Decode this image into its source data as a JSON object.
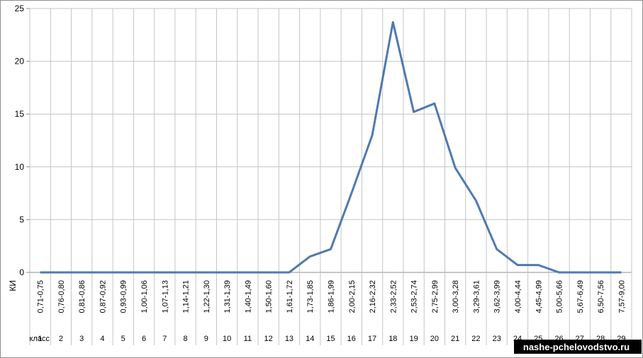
{
  "chart_data": {
    "type": "line",
    "row_label_interval": "КИ",
    "row_label_class": "класс",
    "intervals": [
      "0,71-0,75",
      "0,76-0,80",
      "0,81-0,86",
      "0,87-0,92",
      "0,93-0,99",
      "1,00-1,06",
      "1,07-1,13",
      "1,14-1,21",
      "1,22-1,30",
      "1,31-1,39",
      "1,40-1,49",
      "1,50-1,60",
      "1,61-1,72",
      "1,73-1,85",
      "1,86-1,99",
      "2,00-2,15",
      "2,16-2,32",
      "2,33-2,52",
      "2,53-2,74",
      "2,75-2,99",
      "3,00-3,28",
      "3,29-3,61",
      "3,62-3,99",
      "4,00-4,44",
      "4,45-4,99",
      "5,00-5,66",
      "5,67-6,49",
      "6,50-7,56",
      "7,57-9,00"
    ],
    "classes": [
      "1",
      "2",
      "3",
      "4",
      "5",
      "6",
      "7",
      "8",
      "9",
      "10",
      "11",
      "12",
      "13",
      "14",
      "15",
      "16",
      "17",
      "18",
      "19",
      "20",
      "21",
      "22",
      "23",
      "24",
      "25",
      "26",
      "27",
      "28",
      "29"
    ],
    "series": [
      {
        "values": [
          0,
          0,
          0,
          0,
          0,
          0,
          0,
          0,
          0,
          0,
          0,
          0,
          0,
          1.5,
          2.2,
          7.5,
          13,
          23.7,
          15.2,
          16,
          9.9,
          6.8,
          2.2,
          0.7,
          0.7,
          0,
          0,
          0,
          0
        ]
      }
    ],
    "yticks": [
      "0",
      "5",
      "10",
      "15",
      "20",
      "25"
    ],
    "ylim": [
      0,
      25
    ],
    "grid": true,
    "line_color": "#4f7ab0"
  },
  "watermark": "nashe-pchelovodstvo.ru"
}
